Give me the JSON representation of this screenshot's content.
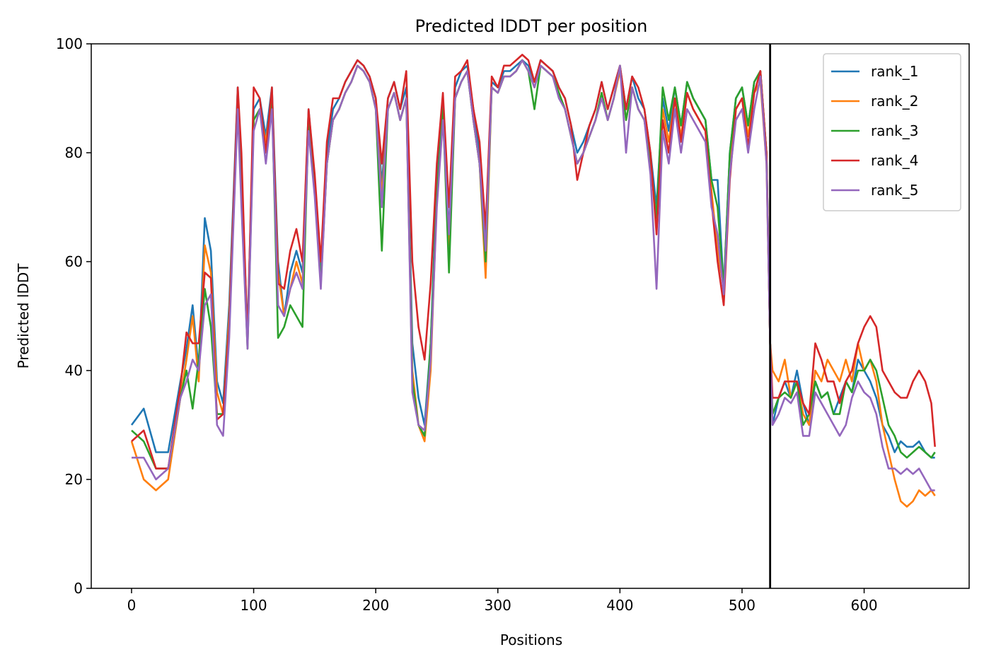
{
  "chart_data": {
    "type": "line",
    "title": "Predicted lDDT per position",
    "xlabel": "Positions",
    "ylabel": "Predicted lDDT",
    "xlim": [
      -33,
      686
    ],
    "ylim": [
      0,
      100
    ],
    "xticks": [
      0,
      100,
      200,
      300,
      400,
      500,
      600
    ],
    "yticks": [
      0,
      20,
      40,
      60,
      80,
      100
    ],
    "grid": false,
    "legend_position": "top-right",
    "vertical_line": {
      "x": 523,
      "color": "#000000"
    },
    "x": [
      0,
      10,
      20,
      30,
      40,
      45,
      50,
      55,
      60,
      65,
      70,
      75,
      80,
      87,
      90,
      95,
      100,
      105,
      110,
      115,
      120,
      125,
      130,
      135,
      140,
      145,
      150,
      155,
      160,
      165,
      170,
      175,
      180,
      185,
      190,
      195,
      200,
      205,
      210,
      215,
      220,
      225,
      230,
      235,
      240,
      245,
      250,
      255,
      260,
      265,
      270,
      275,
      280,
      285,
      290,
      295,
      300,
      305,
      310,
      315,
      320,
      325,
      330,
      335,
      340,
      345,
      350,
      355,
      360,
      365,
      370,
      375,
      380,
      385,
      390,
      395,
      400,
      405,
      410,
      415,
      420,
      425,
      430,
      435,
      440,
      445,
      450,
      455,
      460,
      465,
      470,
      475,
      480,
      485,
      490,
      495,
      500,
      505,
      510,
      515,
      520,
      523,
      525,
      530,
      535,
      540,
      545,
      550,
      555,
      560,
      565,
      570,
      575,
      580,
      585,
      590,
      595,
      600,
      605,
      610,
      615,
      620,
      625,
      630,
      635,
      640,
      645,
      650,
      655,
      658
    ],
    "series": [
      {
        "name": "rank_1",
        "color": "#1f77b4",
        "values": [
          30,
          33,
          25,
          25,
          38,
          44,
          52,
          40,
          68,
          62,
          38,
          34,
          52,
          92,
          75,
          47,
          88,
          90,
          83,
          92,
          60,
          50,
          58,
          62,
          58,
          88,
          75,
          58,
          80,
          88,
          90,
          93,
          95,
          97,
          96,
          94,
          90,
          74,
          90,
          93,
          88,
          92,
          45,
          35,
          30,
          45,
          75,
          90,
          65,
          92,
          95,
          96,
          88,
          80,
          65,
          93,
          92,
          95,
          95,
          96,
          97,
          96,
          93,
          97,
          96,
          95,
          92,
          90,
          85,
          80,
          82,
          85,
          88,
          93,
          88,
          92,
          96,
          88,
          94,
          90,
          88,
          80,
          70,
          90,
          84,
          92,
          85,
          93,
          90,
          88,
          86,
          75,
          75,
          55,
          80,
          90,
          92,
          85,
          93,
          95,
          80,
          45,
          30,
          35,
          38,
          35,
          40,
          34,
          30,
          38,
          35,
          36,
          32,
          35,
          38,
          36,
          42,
          40,
          38,
          35,
          30,
          28,
          25,
          27,
          26,
          26,
          27,
          25,
          24,
          24
        ]
      },
      {
        "name": "rank_2",
        "color": "#ff7f0e",
        "values": [
          27,
          20,
          18,
          20,
          35,
          42,
          50,
          38,
          63,
          58,
          36,
          32,
          50,
          90,
          72,
          45,
          86,
          88,
          82,
          90,
          58,
          50,
          55,
          60,
          56,
          86,
          73,
          56,
          78,
          86,
          88,
          91,
          93,
          96,
          95,
          93,
          88,
          72,
          88,
          91,
          86,
          90,
          40,
          30,
          27,
          40,
          72,
          88,
          63,
          90,
          93,
          95,
          86,
          78,
          57,
          92,
          91,
          94,
          94,
          95,
          97,
          95,
          92,
          96,
          95,
          94,
          91,
          88,
          83,
          78,
          80,
          83,
          86,
          91,
          86,
          90,
          95,
          86,
          92,
          88,
          86,
          78,
          68,
          88,
          82,
          90,
          83,
          91,
          88,
          86,
          84,
          73,
          62,
          55,
          78,
          88,
          90,
          83,
          91,
          93,
          78,
          45,
          40,
          38,
          42,
          35,
          38,
          32,
          30,
          40,
          38,
          42,
          40,
          38,
          42,
          38,
          45,
          40,
          42,
          38,
          30,
          25,
          20,
          16,
          15,
          16,
          18,
          17,
          18,
          17
        ]
      },
      {
        "name": "rank_3",
        "color": "#2ca02c",
        "values": [
          29,
          27,
          22,
          22,
          35,
          40,
          33,
          42,
          55,
          48,
          32,
          32,
          48,
          90,
          72,
          44,
          86,
          88,
          80,
          90,
          46,
          48,
          52,
          50,
          48,
          86,
          73,
          56,
          78,
          86,
          88,
          91,
          93,
          96,
          95,
          93,
          88,
          62,
          88,
          91,
          86,
          90,
          38,
          30,
          28,
          45,
          72,
          88,
          58,
          90,
          93,
          95,
          86,
          78,
          60,
          92,
          91,
          94,
          94,
          95,
          97,
          95,
          88,
          96,
          95,
          94,
          91,
          88,
          83,
          78,
          80,
          83,
          86,
          91,
          86,
          90,
          96,
          86,
          92,
          88,
          86,
          78,
          68,
          92,
          86,
          92,
          85,
          93,
          90,
          88,
          86,
          75,
          70,
          55,
          80,
          90,
          92,
          85,
          93,
          95,
          80,
          45,
          32,
          35,
          36,
          35,
          38,
          30,
          32,
          38,
          35,
          36,
          32,
          32,
          38,
          36,
          40,
          40,
          42,
          40,
          35,
          30,
          28,
          25,
          24,
          25,
          26,
          25,
          24,
          25
        ]
      },
      {
        "name": "rank_4",
        "color": "#d62728",
        "values": [
          27,
          29,
          22,
          22,
          37,
          47,
          45,
          45,
          58,
          57,
          31,
          32,
          48,
          92,
          80,
          45,
          92,
          90,
          80,
          92,
          56,
          55,
          62,
          66,
          60,
          88,
          76,
          60,
          82,
          90,
          90,
          93,
          95,
          97,
          96,
          94,
          90,
          78,
          90,
          93,
          88,
          95,
          60,
          48,
          42,
          56,
          78,
          91,
          70,
          94,
          95,
          97,
          88,
          82,
          66,
          94,
          92,
          96,
          96,
          97,
          98,
          97,
          93,
          97,
          96,
          95,
          92,
          90,
          85,
          75,
          80,
          85,
          88,
          93,
          88,
          92,
          96,
          88,
          94,
          92,
          88,
          80,
          65,
          86,
          80,
          90,
          82,
          91,
          88,
          86,
          84,
          71,
          60,
          52,
          75,
          88,
          90,
          81,
          91,
          95,
          80,
          45,
          35,
          35,
          38,
          38,
          38,
          34,
          32,
          45,
          42,
          38,
          38,
          34,
          38,
          40,
          45,
          48,
          50,
          48,
          40,
          38,
          36,
          35,
          35,
          38,
          40,
          38,
          34,
          26
        ]
      },
      {
        "name": "rank_5",
        "color": "#9467bd",
        "values": [
          24,
          24,
          20,
          22,
          35,
          38,
          42,
          40,
          52,
          54,
          30,
          28,
          46,
          88,
          70,
          44,
          84,
          88,
          78,
          88,
          52,
          50,
          55,
          58,
          55,
          84,
          72,
          55,
          78,
          86,
          88,
          91,
          93,
          96,
          95,
          93,
          88,
          70,
          88,
          91,
          86,
          90,
          36,
          30,
          29,
          42,
          70,
          86,
          65,
          90,
          93,
          95,
          86,
          78,
          62,
          92,
          91,
          94,
          94,
          95,
          97,
          95,
          92,
          96,
          95,
          94,
          90,
          88,
          83,
          78,
          80,
          83,
          86,
          90,
          86,
          90,
          96,
          80,
          92,
          88,
          86,
          76,
          55,
          84,
          78,
          88,
          80,
          88,
          86,
          84,
          82,
          70,
          65,
          54,
          76,
          86,
          88,
          80,
          88,
          94,
          78,
          45,
          30,
          32,
          35,
          34,
          36,
          28,
          28,
          36,
          34,
          32,
          30,
          28,
          30,
          35,
          38,
          36,
          35,
          32,
          26,
          22,
          22,
          21,
          22,
          21,
          22,
          20,
          18,
          18
        ]
      }
    ]
  }
}
